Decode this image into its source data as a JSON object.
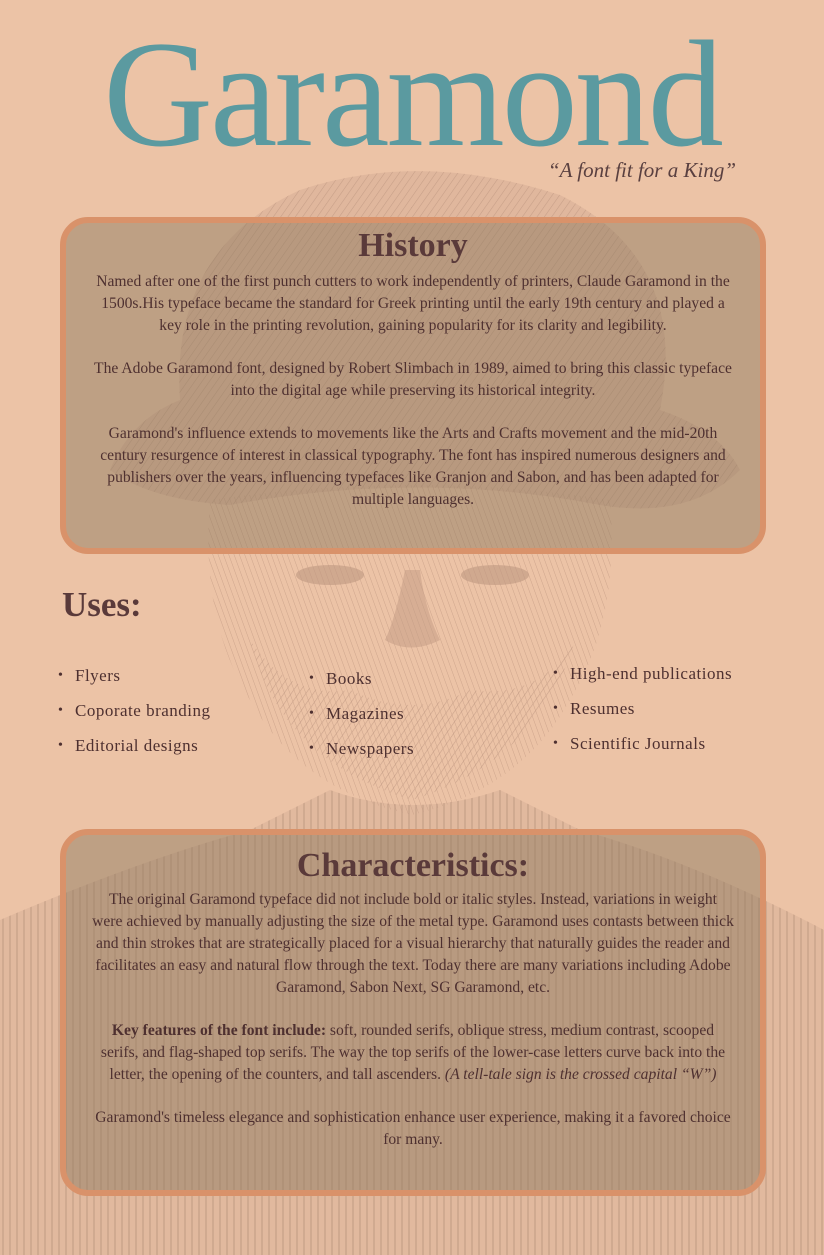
{
  "header": {
    "title": "Garamond",
    "tagline": "“A font fit for a King”"
  },
  "history": {
    "heading": "History",
    "paragraphs": [
      "Named after one of the first punch cutters to work independently of printers, Claude Garamond in the 1500s.His typeface became the standard for Greek printing until the early 19th century and played a key role in the printing revolution, gaining popularity for its clarity and legibility.",
      "The Adobe Garamond font, designed by Robert Slimbach in 1989, aimed to bring this classic typeface into the digital age while preserving its historical integrity.",
      "Garamond's influence extends to movements like the Arts and Crafts movement and the mid-20th century resurgence of interest in classical typography. The font has inspired numerous designers and publishers over the years, influencing typefaces like Granjon and Sabon, and has been adapted for multiple languages."
    ]
  },
  "uses": {
    "heading": "Uses:",
    "columns": [
      [
        "Flyers",
        "Coporate branding",
        "Editorial designs"
      ],
      [
        "Books",
        "Magazines",
        "Newspapers"
      ],
      [
        "High-end publications",
        "Resumes",
        "Scientific Journals"
      ]
    ]
  },
  "characteristics": {
    "heading": "Characteristics:",
    "paragraph1": "The original Garamond typeface did not include bold or italic styles. Instead, variations in weight were achieved by manually adjusting the size of the metal type. Garamond uses contasts between thick and thin strokes that are strategically placed for a visual hierarchy that naturally guides the reader and facilitates an easy and natural flow through the text.  Today there are many variations including Adobe Garamond, Sabon Next, SG Garamond, etc.",
    "features_label": "Key features of the font include:",
    "features_text": " soft, rounded serifs, oblique stress, medium contrast, scooped serifs, and flag-shaped top serifs. The way the top serifs of the lower-case letters curve back into the letter, the opening of the counters, and tall ascenders. ",
    "features_note": "(A tell-tale sign is the crossed capital “W”)",
    "closing": "Garamond's timeless elegance and sophistication enhance user experience, making it a favored choice for many."
  },
  "colors": {
    "background": "#ecc3a6",
    "title": "#5b9aa0",
    "panel_border": "#d9926a",
    "text": "#4e3030",
    "portrait": "#b08a78"
  },
  "decor": {
    "portrait_icon": "engraved-portrait-illustration"
  }
}
